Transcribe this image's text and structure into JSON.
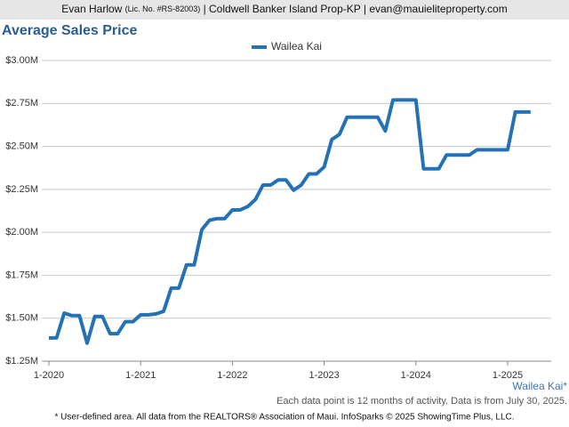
{
  "header": {
    "name": "Evan Harlow",
    "license": "(Lic. No. #RS-82003)",
    "rest": "| Coldwell Banker Island Prop-KP | evan@mauieliteproperty.com"
  },
  "chart_data": {
    "type": "line",
    "title": "Average Sales Price",
    "categories": [
      "1-2020",
      null,
      null,
      null,
      null,
      null,
      null,
      null,
      null,
      null,
      null,
      null,
      "1-2021",
      null,
      null,
      null,
      null,
      null,
      null,
      null,
      null,
      null,
      null,
      null,
      "1-2022",
      null,
      null,
      null,
      null,
      null,
      null,
      null,
      null,
      null,
      null,
      null,
      "1-2023",
      null,
      null,
      null,
      null,
      null,
      null,
      null,
      null,
      null,
      null,
      null,
      "1-2024",
      null,
      null,
      null,
      null,
      null,
      null,
      null,
      null,
      null,
      null,
      null,
      "1-2025",
      null,
      null,
      null
    ],
    "series": [
      {
        "name": "Wailea Kai",
        "color": "#2472b5",
        "values": [
          1385000,
          1385000,
          1530000,
          1515000,
          1515000,
          1355000,
          1510000,
          1510000,
          1410000,
          1410000,
          1480000,
          1480000,
          1520000,
          1520000,
          1525000,
          1540000,
          1675000,
          1675000,
          1810000,
          1810000,
          2015000,
          2070000,
          2080000,
          2080000,
          2130000,
          2130000,
          2150000,
          2190000,
          2275000,
          2275000,
          2305000,
          2305000,
          2245000,
          2275000,
          2340000,
          2340000,
          2380000,
          2540000,
          2570000,
          2670000,
          2670000,
          2670000,
          2670000,
          2670000,
          2590000,
          2770000,
          2770000,
          2770000,
          2770000,
          2370000,
          2370000,
          2370000,
          2450000,
          2450000,
          2450000,
          2450000,
          2480000,
          2480000,
          2480000,
          2480000,
          2480000,
          2700000,
          2700000,
          2700000
        ]
      }
    ],
    "ylim": [
      1250000,
      3000000
    ],
    "yticks": [
      {
        "value": 1250000,
        "label": "$1.25M"
      },
      {
        "value": 1500000,
        "label": "$1.50M"
      },
      {
        "value": 1750000,
        "label": "$1.75M"
      },
      {
        "value": 2000000,
        "label": "$2.00M"
      },
      {
        "value": 2250000,
        "label": "$2.25M"
      },
      {
        "value": 2500000,
        "label": "$2.50M"
      },
      {
        "value": 2750000,
        "label": "$2.75M"
      },
      {
        "value": 3000000,
        "label": "$3.00M"
      }
    ],
    "grid": true,
    "area_label": "Wailea Kai*",
    "note": "Each data point is 12 months of activity. Data is from July 30, 2025.",
    "footer": "* User-defined area. All data from the REALTORS® Association of Maui. InfoSparks © 2025 ShowingTime Plus, LLC."
  }
}
